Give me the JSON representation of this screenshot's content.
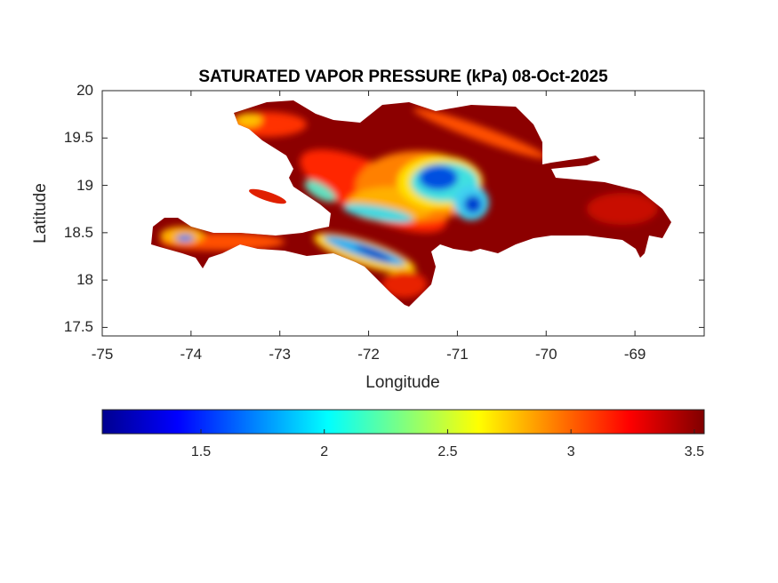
{
  "chart_data": {
    "type": "heatmap",
    "title": "SATURATED VAPOR PRESSURE (kPa) 08-Oct-2025",
    "xlabel": "Longitude",
    "ylabel": "Latitude",
    "xlim": [
      -75,
      -68.22
    ],
    "ylim": [
      17.41,
      20
    ],
    "xticks": [
      "-75",
      "-74",
      "-73",
      "-72",
      "-71",
      "-70",
      "-69"
    ],
    "yticks": [
      "20",
      "19.5",
      "19",
      "18.5",
      "18",
      "17.5"
    ],
    "colormap": "jet",
    "colorbar": {
      "location": "bottom",
      "range": [
        1.1,
        3.54
      ],
      "ticks": [
        "1.5",
        "2",
        "2.5",
        "3",
        "3.5"
      ]
    },
    "region": "Hispaniola",
    "high_values_color": "#800000",
    "low_values_color": "#00008f"
  }
}
